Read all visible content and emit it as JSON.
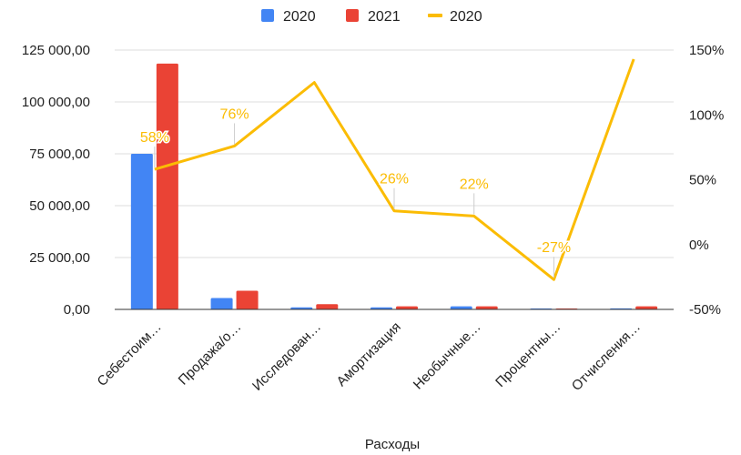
{
  "chart_data": {
    "type": "bar",
    "categories": [
      "Себестоим…",
      "Продажа/о…",
      "Исследован…",
      "Амортизация",
      "Необычные…",
      "Процентны…",
      "Отчисления…"
    ],
    "series": [
      {
        "name": "2020",
        "kind": "bar",
        "axis": "left",
        "color": "#4285f4",
        "values": [
          75000,
          5500,
          1000,
          1000,
          1500,
          300,
          500
        ]
      },
      {
        "name": "2021",
        "kind": "bar",
        "axis": "left",
        "color": "#ea4335",
        "values": [
          118500,
          9000,
          2500,
          1500,
          1500,
          300,
          1500
        ]
      },
      {
        "name": "2020",
        "kind": "line",
        "axis": "right",
        "color": "#fbbc04",
        "values": [
          58,
          76,
          125,
          26,
          22,
          -27,
          143
        ]
      }
    ],
    "data_labels": [
      "58%",
      "76%",
      "",
      "26%",
      "22%",
      "-27%",
      ""
    ],
    "y_left": {
      "min": 0,
      "max": 125000,
      "ticks": [
        0,
        25000,
        50000,
        75000,
        100000,
        125000
      ],
      "tick_labels": [
        "0,00",
        "25 000,00",
        "50 000,00",
        "75 000,00",
        "100 000,00",
        "125 000,00"
      ]
    },
    "y_right": {
      "min": -50,
      "max": 150,
      "ticks": [
        -50,
        0,
        50,
        100,
        150
      ],
      "tick_labels": [
        "-50%",
        "0%",
        "50%",
        "100%",
        "150%"
      ]
    },
    "xlabel": "Расходы",
    "legend": {
      "position": "top",
      "entries": [
        "2020",
        "2021",
        "2020"
      ]
    },
    "grid": true
  }
}
